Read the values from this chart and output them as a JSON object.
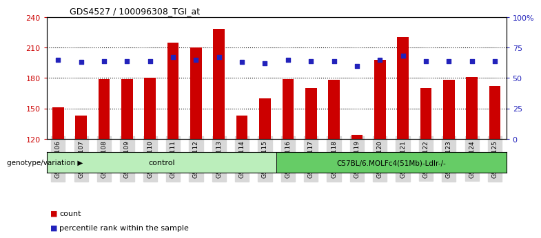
{
  "title": "GDS4527 / 100096308_TGI_at",
  "samples": [
    "GSM592106",
    "GSM592107",
    "GSM592108",
    "GSM592109",
    "GSM592110",
    "GSM592111",
    "GSM592112",
    "GSM592113",
    "GSM592114",
    "GSM592115",
    "GSM592116",
    "GSM592117",
    "GSM592118",
    "GSM592119",
    "GSM592120",
    "GSM592121",
    "GSM592122",
    "GSM592123",
    "GSM592124",
    "GSM592125"
  ],
  "counts": [
    151,
    143,
    179,
    179,
    180,
    215,
    210,
    228,
    143,
    160,
    179,
    170,
    178,
    124,
    198,
    220,
    170,
    178,
    181,
    172
  ],
  "percentiles": [
    65,
    63,
    64,
    64,
    64,
    67,
    65,
    67,
    63,
    62,
    65,
    64,
    64,
    60,
    65,
    68,
    64,
    64,
    64,
    64
  ],
  "group1_label": "control",
  "group1_count": 10,
  "group2_label": "C57BL/6.MOLFc4(51Mb)-Ldlr-/-",
  "group2_count": 10,
  "genotype_label": "genotype/variation",
  "ymin": 120,
  "ymax": 240,
  "yticks_left": [
    120,
    150,
    180,
    210,
    240
  ],
  "yticks_right": [
    0,
    25,
    50,
    75,
    100
  ],
  "bar_color": "#cc0000",
  "dot_color": "#2222bb",
  "left_axis_color": "#cc0000",
  "right_axis_color": "#2222bb",
  "plot_bg_color": "#ffffff",
  "tick_label_bg": "#d8d8d8",
  "group1_color": "#bbeebb",
  "group2_color": "#66cc66",
  "grid_lines": [
    150,
    180,
    210
  ],
  "bar_width": 0.5
}
